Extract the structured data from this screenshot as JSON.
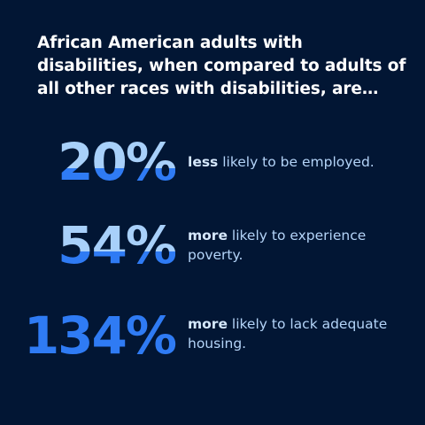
{
  "headline": "African American adults with disabilities, when compared to adults of all other races with disabilities, are…",
  "colors": {
    "background": "#021634",
    "number_light": "#a8d0fa",
    "number_dark": "#2f7bf4",
    "text": "#b4d4f8"
  },
  "stats": [
    {
      "value": "20%",
      "emphasis": "less",
      "text": " likely to be employed."
    },
    {
      "value": "54%",
      "emphasis": "more",
      "text": " likely to experience poverty."
    },
    {
      "value": "134%",
      "emphasis": "more",
      "text": " likely to lack adequate housing."
    }
  ]
}
